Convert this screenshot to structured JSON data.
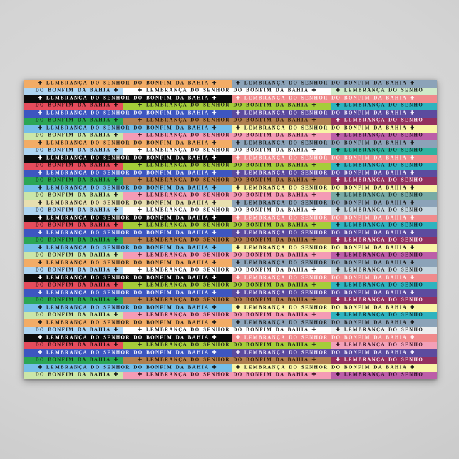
{
  "poster": {
    "title_phrase": "LEMBRANÇA DO SENHOR DO BONFIM DA BAHIA",
    "phrase_full": "✚ LEMBRANÇA DO SENHOR DO BONFIM DA BAHIA ✚",
    "phrase_tail": "DO BONFIM DA BAHIA ✚",
    "phrase_head": "✚ LEMBRANÇA DO SENHO",
    "cross_icon": "✚"
  },
  "background": {
    "inner": "#dedede",
    "mid": "#d4d4d4",
    "outer": "#c3c3c3"
  },
  "palette": {
    "orange": {
      "bg": "#F2AC66",
      "fg": "#1a1a1a"
    },
    "slate": {
      "bg": "#8CA3B8",
      "fg": "#1a1a1a"
    },
    "lightblue": {
      "bg": "#AED5F2",
      "fg": "#1a1a1a"
    },
    "white": {
      "bg": "#FEFEFE",
      "fg": "#1a1a1a"
    },
    "mint": {
      "bg": "#CFEAC9",
      "fg": "#1a1a1a"
    },
    "black": {
      "bg": "#0B0B0B",
      "fg": "#FFFFFF"
    },
    "salmon": {
      "bg": "#F08A8C",
      "fg": "#FFF1F1"
    },
    "red": {
      "bg": "#E54C5C",
      "fg": "#1f0d0f"
    },
    "yellowgreen": {
      "bg": "#A5CC3A",
      "fg": "#1a1a1a"
    },
    "teal": {
      "bg": "#2FB3BE",
      "fg": "#11262b"
    },
    "blue": {
      "bg": "#3D56C0",
      "fg": "#F4F7FF"
    },
    "purple": {
      "bg": "#5C4B9E",
      "fg": "#F4F1FF"
    },
    "green": {
      "bg": "#2BA655",
      "fg": "#0f2e1a"
    },
    "brown": {
      "bg": "#B08050",
      "fg": "#241404"
    },
    "maroon": {
      "bg": "#93305E",
      "fg": "#FCEFF5"
    },
    "skyblue": {
      "bg": "#74BEE8",
      "fg": "#1a1a1a"
    },
    "paleyellow": {
      "bg": "#F8F4A6",
      "fg": "#1a1a1a"
    },
    "palegreen": {
      "bg": "#CBE6A8",
      "fg": "#1a1a1a"
    },
    "pink": {
      "bg": "#F49BB5",
      "fg": "#38121f"
    },
    "magenta": {
      "bg": "#BC5EA8",
      "fg": "#2a0e22"
    },
    "cream": {
      "bg": "#E8DFB0",
      "fg": "#1a1a1a"
    },
    "palebluegray": {
      "bg": "#C6D5DE",
      "fg": "#1a1a1a"
    },
    "tealgreen": {
      "bg": "#2FB3A0",
      "fg": "#0d2620"
    },
    "tealgray": {
      "bg": "#78AAA4",
      "fg": "#132824"
    },
    "offwhite": {
      "bg": "#EDEFF0",
      "fg": "#1a1a1a"
    },
    "pink2": {
      "bg": "#F2A0B8",
      "fg": "#38121f"
    }
  },
  "layout": {
    "row_height": 10.5,
    "full_widths": [
      292,
      288
    ],
    "offset_widths": [
      140,
      292,
      148
    ]
  },
  "rows": [
    {
      "kind": "full",
      "segs": [
        "orange",
        "slate"
      ]
    },
    {
      "kind": "offset",
      "segs": [
        "lightblue",
        "white",
        "mint"
      ]
    },
    {
      "kind": "full",
      "segs": [
        "black",
        "salmon"
      ]
    },
    {
      "kind": "offset",
      "segs": [
        "red",
        "yellowgreen",
        "teal"
      ]
    },
    {
      "kind": "full",
      "segs": [
        "blue",
        "purple"
      ]
    },
    {
      "kind": "offset",
      "segs": [
        "green",
        "brown",
        "maroon"
      ]
    },
    {
      "kind": "full",
      "segs": [
        "skyblue",
        "paleyellow"
      ]
    },
    {
      "kind": "offset",
      "segs": [
        "palegreen",
        "pink",
        "magenta"
      ]
    },
    {
      "kind": "full",
      "segs": [
        "orange",
        "slate"
      ]
    },
    {
      "kind": "offset",
      "segs": [
        "lightblue",
        "white",
        "tealgreen"
      ]
    },
    {
      "kind": "full",
      "segs": [
        "black",
        "salmon"
      ]
    },
    {
      "kind": "offset",
      "segs": [
        "red",
        "yellowgreen",
        "teal"
      ]
    },
    {
      "kind": "full",
      "segs": [
        "blue",
        "purple"
      ]
    },
    {
      "kind": "offset",
      "segs": [
        "green",
        "brown",
        "maroon"
      ]
    },
    {
      "kind": "full",
      "segs": [
        "skyblue",
        "paleyellow"
      ]
    },
    {
      "kind": "offset",
      "segs": [
        "palegreen",
        "pink",
        "tealgray"
      ]
    },
    {
      "kind": "full",
      "segs": [
        "cream",
        "slate"
      ]
    },
    {
      "kind": "offset",
      "segs": [
        "lightblue",
        "white",
        "palebluegray"
      ]
    },
    {
      "kind": "full",
      "segs": [
        "black",
        "salmon"
      ]
    },
    {
      "kind": "offset",
      "segs": [
        "red",
        "yellowgreen",
        "teal"
      ]
    },
    {
      "kind": "full",
      "segs": [
        "blue",
        "purple"
      ]
    },
    {
      "kind": "offset",
      "segs": [
        "green",
        "brown",
        "maroon"
      ]
    },
    {
      "kind": "full",
      "segs": [
        "skyblue",
        "paleyellow"
      ]
    },
    {
      "kind": "offset",
      "segs": [
        "palegreen",
        "pink",
        "magenta"
      ]
    },
    {
      "kind": "full",
      "segs": [
        "orange",
        "slate"
      ]
    },
    {
      "kind": "offset",
      "segs": [
        "lightblue",
        "white",
        "palebluegray"
      ]
    },
    {
      "kind": "full",
      "segs": [
        "black",
        "salmon"
      ]
    },
    {
      "kind": "offset",
      "segs": [
        "red",
        "yellowgreen",
        "teal"
      ]
    },
    {
      "kind": "full",
      "segs": [
        "blue",
        "purple"
      ]
    },
    {
      "kind": "offset",
      "segs": [
        "green",
        "brown",
        "maroon"
      ]
    },
    {
      "kind": "full",
      "segs": [
        "skyblue",
        "paleyellow"
      ]
    },
    {
      "kind": "offset",
      "segs": [
        "palegreen",
        "pink",
        "teal"
      ]
    },
    {
      "kind": "full",
      "segs": [
        "orange",
        "slate"
      ]
    },
    {
      "kind": "offset",
      "segs": [
        "lightblue",
        "white",
        "offwhite"
      ]
    },
    {
      "kind": "full",
      "segs": [
        "black",
        "salmon"
      ]
    },
    {
      "kind": "offset",
      "segs": [
        "red",
        "yellowgreen",
        "pink2"
      ]
    },
    {
      "kind": "full",
      "segs": [
        "blue",
        "purple"
      ]
    },
    {
      "kind": "offset",
      "segs": [
        "green",
        "brown",
        "maroon"
      ]
    },
    {
      "kind": "full",
      "segs": [
        "skyblue",
        "paleyellow"
      ]
    },
    {
      "kind": "offset",
      "segs": [
        "palegreen",
        "pink",
        "magenta"
      ]
    }
  ]
}
